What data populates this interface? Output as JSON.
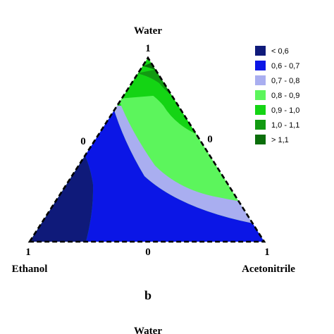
{
  "chart_data": {
    "type": "ternary contour",
    "components": [
      "Water",
      "Ethanol",
      "Acetonitrile"
    ],
    "vertex_labels": {
      "top": "Water",
      "left": "Ethanol",
      "right": "Acetonitrile"
    },
    "tick_labels": {
      "top_vertex": "1",
      "left_vertex": "1",
      "right_vertex": "1",
      "left_mid": "0",
      "right_mid": "0",
      "bottom_mid": "0"
    },
    "panel_label": "b",
    "next_panel_label": "Water",
    "legend": [
      {
        "range": "<   0,6",
        "color": "#0f1a7a"
      },
      {
        "range": "0,6  -  0,7",
        "color": "#0b16e6"
      },
      {
        "range": "0,7  -  0,8",
        "color": "#a9aef0"
      },
      {
        "range": "0,8  -  0,9",
        "color": "#5cf55c"
      },
      {
        "range": "0,9  -  1,0",
        "color": "#14d414"
      },
      {
        "range": "1,0  -  1,1",
        "color": "#129a12"
      },
      {
        "range": ">   1,1",
        "color": "#0b6e0b"
      }
    ]
  }
}
